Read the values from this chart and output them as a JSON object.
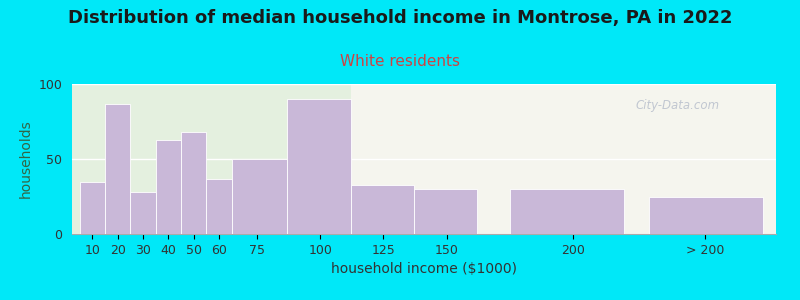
{
  "title": "Distribution of median household income in Montrose, PA in 2022",
  "subtitle": "White residents",
  "xlabel": "household income ($1000)",
  "ylabel": "households",
  "background_outer": "#00e8f8",
  "bar_color": "#c9b8d8",
  "bar_edge_color": "#ffffff",
  "ylim": [
    0,
    100
  ],
  "yticks": [
    0,
    50,
    100
  ],
  "categories": [
    "10",
    "20",
    "30",
    "40",
    "50",
    "60",
    "75",
    "100",
    "125",
    "150",
    "200",
    "> 200"
  ],
  "values": [
    35,
    87,
    28,
    63,
    68,
    37,
    50,
    90,
    33,
    30,
    30,
    25
  ],
  "bar_lefts": [
    5,
    15,
    25,
    35,
    45,
    55,
    65,
    87,
    112,
    137,
    175,
    230
  ],
  "bar_widths": [
    10,
    10,
    10,
    10,
    10,
    10,
    22,
    25,
    25,
    25,
    45,
    45
  ],
  "tick_positions": [
    10,
    20,
    30,
    40,
    50,
    60,
    75,
    100,
    125,
    150,
    200,
    252
  ],
  "xlim": [
    2,
    280
  ],
  "watermark": "City-Data.com",
  "title_fontsize": 13,
  "subtitle_fontsize": 11,
  "axis_label_fontsize": 10,
  "tick_fontsize": 9,
  "title_color": "#1a1a1a",
  "subtitle_color": "#cc4444",
  "ylabel_color": "#336644",
  "xlabel_color": "#333333",
  "watermark_color": "#b8bfcc",
  "bg_left_color": "#e4f0df",
  "bg_right_color": "#f5f5ee",
  "bg_split_x": 112,
  "grid_color": "#ffffff",
  "spine_color": "#aaaaaa"
}
